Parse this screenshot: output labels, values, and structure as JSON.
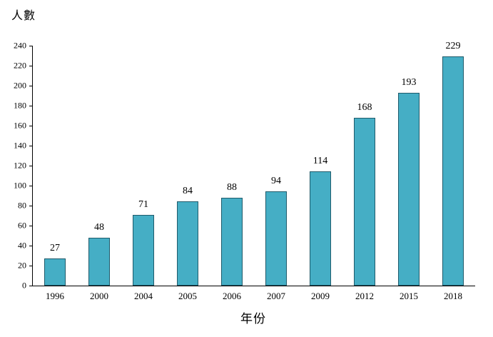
{
  "chart_data": {
    "type": "bar",
    "title": "",
    "ylabel": "人數",
    "xlabel": "年份",
    "categories": [
      "1996",
      "2000",
      "2004",
      "2005",
      "2006",
      "2007",
      "2009",
      "2012",
      "2015",
      "2018"
    ],
    "values": [
      27,
      48,
      71,
      84,
      88,
      94,
      114,
      168,
      193,
      229
    ],
    "ylim": [
      0,
      240
    ],
    "ytick_step": 20,
    "yticks": [
      0,
      20,
      40,
      60,
      80,
      100,
      120,
      140,
      160,
      180,
      200,
      220,
      240
    ],
    "grid": false,
    "legend": "none",
    "bar_color": "#45aec5",
    "bar_border_color": "#1f5b6b",
    "axis_color": "#000000",
    "data_labels_shown": true
  }
}
